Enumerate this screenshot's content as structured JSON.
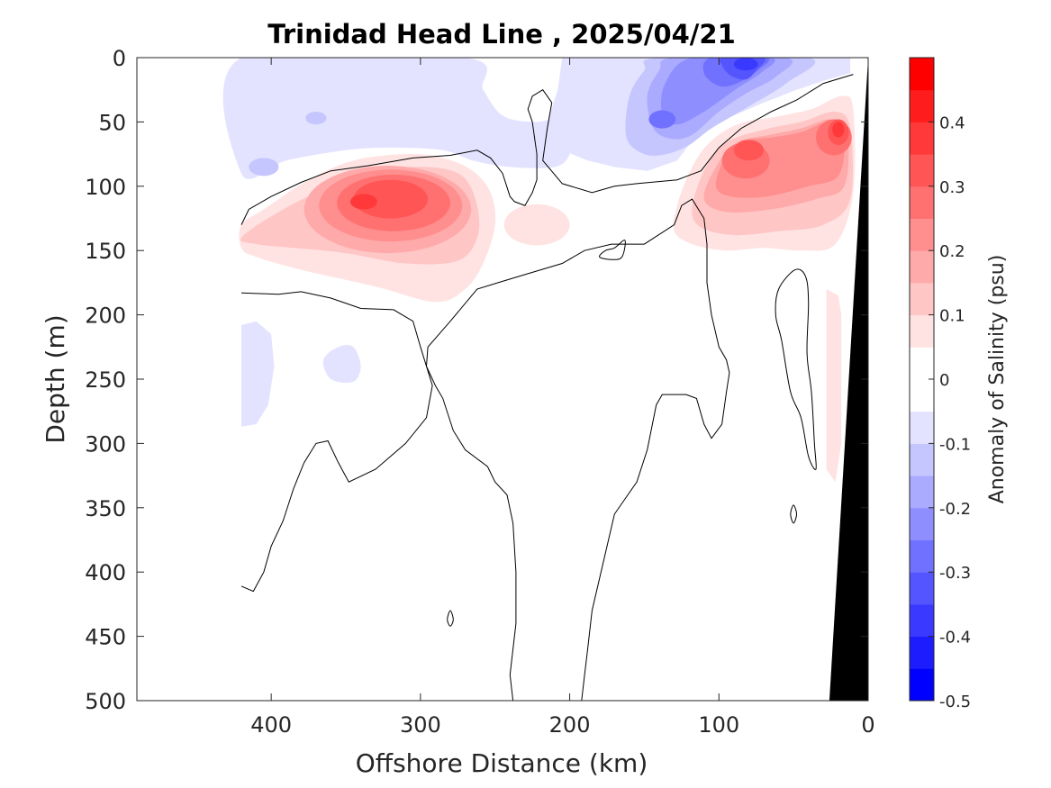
{
  "chart_data": {
    "type": "heatmap",
    "title": "Trinidad Head Line , 2025/04/21",
    "xlabel": "Offshore Distance (km)",
    "ylabel": "Depth (m)",
    "xlim": [
      490,
      0
    ],
    "ylim": [
      500,
      0
    ],
    "x_reversed": true,
    "y_reversed": true,
    "x_ticks": [
      400,
      300,
      200,
      100,
      0
    ],
    "y_ticks": [
      0,
      50,
      100,
      150,
      200,
      250,
      300,
      350,
      400,
      450,
      500
    ],
    "colorbar": {
      "label": "Anomaly of Salinity (psu)",
      "range": [
        -0.5,
        0.5
      ],
      "step": 0.05,
      "ticks": [
        0.4,
        0.3,
        0.2,
        0.1,
        0,
        -0.1,
        -0.2,
        -0.3,
        -0.4,
        -0.5
      ],
      "tick_labels": [
        "0.4",
        "0.3",
        "0.2",
        "0.1",
        "0",
        "-0.1",
        "-0.2",
        "-0.3",
        "-0.4",
        "-0.5"
      ],
      "positive_color": "#ff0000",
      "negative_color": "#0000ff",
      "neutral_color": "#ffffff"
    },
    "features": [
      {
        "kind": "salinity_max",
        "x_km": 330,
        "depth_m": 110,
        "value": 0.37
      },
      {
        "kind": "salinity_max",
        "x_km": 80,
        "depth_m": 70,
        "value": 0.35
      },
      {
        "kind": "salinity_max",
        "x_km": 20,
        "depth_m": 57,
        "value": 0.4
      },
      {
        "kind": "salinity_min",
        "x_km": 80,
        "depth_m": 5,
        "value": -0.42
      },
      {
        "kind": "salinity_min",
        "x_km": 140,
        "depth_m": 50,
        "value": -0.3
      }
    ],
    "data_extent_km": [
      420,
      0
    ],
    "bottom_mask_color": "#000000"
  }
}
